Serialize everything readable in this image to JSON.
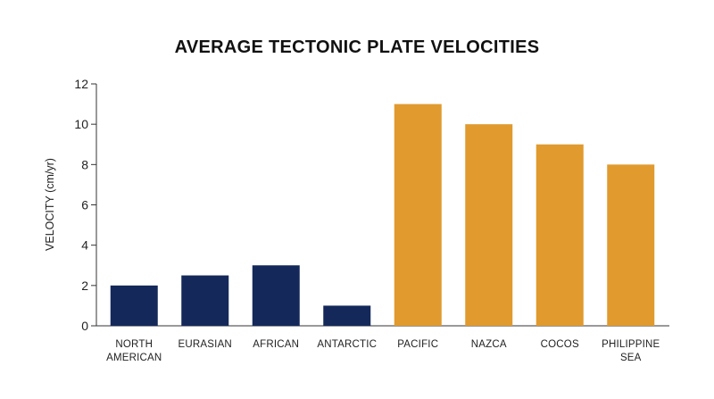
{
  "chart_data": {
    "type": "bar",
    "title": "AVERAGE TECTONIC PLATE VELOCITIES",
    "xlabel": "",
    "ylabel": "VELOCITY (cm/yr)",
    "ylim": [
      0,
      12
    ],
    "yticks": [
      "0",
      "2",
      "4",
      "6",
      "8",
      "10",
      "12"
    ],
    "categories": [
      [
        "NORTH",
        "AMERICAN"
      ],
      [
        "EURASIAN"
      ],
      [
        "AFRICAN"
      ],
      [
        "ANTARCTIC"
      ],
      [
        "PACIFIC"
      ],
      [
        "NAZCA"
      ],
      [
        "COCOS"
      ],
      [
        "PHILIPPINE",
        "SEA"
      ]
    ],
    "values": [
      2,
      2.5,
      3,
      1,
      11,
      10,
      9,
      8
    ],
    "bar_colors": [
      "#14295a",
      "#14295a",
      "#14295a",
      "#14295a",
      "#e09a2e",
      "#e09a2e",
      "#e09a2e",
      "#e09a2e"
    ],
    "grid": false,
    "legend": "none"
  }
}
